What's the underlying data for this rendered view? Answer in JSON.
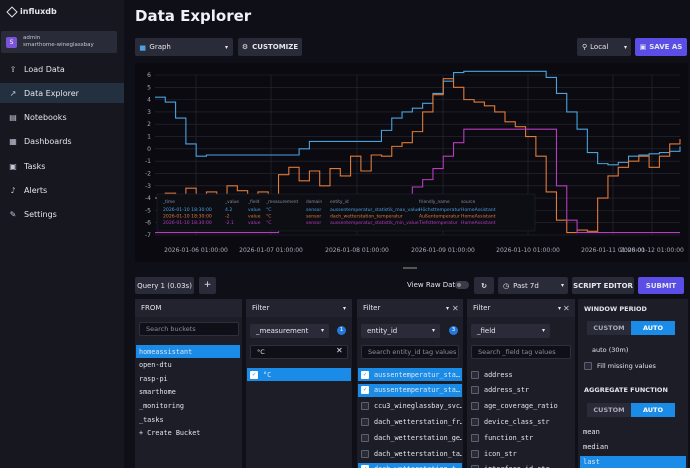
{
  "app": {
    "logo": "influxdb",
    "org_initial": "S",
    "user": "admin",
    "org": "smarthome-wineglassbay"
  },
  "nav": [
    {
      "label": "Load Data",
      "icon": "upload-icon"
    },
    {
      "label": "Data Explorer",
      "icon": "graph-icon",
      "active": true
    },
    {
      "label": "Notebooks",
      "icon": "notebook-icon"
    },
    {
      "label": "Dashboards",
      "icon": "dashboard-icon"
    },
    {
      "label": "Tasks",
      "icon": "calendar-icon"
    },
    {
      "label": "Alerts",
      "icon": "bell-icon"
    },
    {
      "label": "Settings",
      "icon": "wrench-icon"
    }
  ],
  "page": {
    "title": "Data Explorer"
  },
  "toolbar": {
    "graph": "Graph",
    "customize": "CUSTOMIZE",
    "timezone": "Local",
    "save": "SAVE AS"
  },
  "chart_data": {
    "type": "line",
    "ylim": [
      -7,
      6
    ],
    "yticks": [
      6,
      5,
      4,
      3,
      2,
      1,
      0,
      -1,
      -2,
      -3,
      -4,
      -5,
      -6,
      -7
    ],
    "x_labels": [
      "2026-01-06 01:00:00",
      "2026-01-07 01:00:00",
      "2026-01-08 01:00:00",
      "2026-01-09 01:00:00",
      "2026-01-10 01:00:00",
      "2026-01-11 01:00:00",
      "2026-01-12 01:00:00"
    ],
    "series": [
      {
        "color": "#4aa3df",
        "values": [
          4.2,
          3.8,
          2.5,
          0.4,
          -0.6,
          -0.5,
          -0.5,
          -0.5,
          -0.5,
          -0.5,
          -0.5,
          -0.5,
          -0.5,
          -0.5,
          0.0,
          0.6,
          0.6,
          0.6,
          0.6,
          0.6,
          0.6,
          0.6,
          1.5,
          2.5,
          3.0,
          3.3,
          3.7,
          4.5,
          5.5,
          6.2,
          6.3,
          6.3,
          6.3,
          6.3,
          6.3,
          6.3,
          6.3,
          6.3,
          5.8,
          4.5,
          3.0,
          1.6,
          -0.3,
          -1.2,
          -1.3,
          -1.1,
          -0.6,
          -0.5,
          -0.4,
          -0.3,
          -0.2,
          0.2
        ]
      },
      {
        "color": "#e07b39",
        "values": [
          -4.0,
          -3.6,
          -3.9,
          -3.2,
          -4.8,
          -3.5,
          -4.2,
          -3.0,
          -3.4,
          -5.2,
          -3.5,
          -4.0,
          -2.1,
          -1.5,
          -2.6,
          -1.8,
          -3.0,
          -1.6,
          -2.2,
          -0.6,
          -1.8,
          -0.5,
          -0.6,
          0.2,
          0.5,
          1.4,
          3.0,
          4.4,
          5.7,
          5.0,
          4.0,
          3.8,
          3.5,
          3.0,
          2.2,
          1.8,
          1.0,
          -0.6,
          -3.5,
          -5.8,
          -6.8,
          -6.6,
          -6.7,
          -4.0,
          -2.2,
          -1.5,
          -1.0,
          -0.6,
          -1.5,
          -0.6,
          0.4,
          0.8
        ]
      },
      {
        "color": "#b83cc0",
        "values": [
          -6.8,
          -6.8,
          -6.8,
          -6.8,
          -6.8,
          -6.8,
          -6.8,
          -6.8,
          -6.8,
          -6.8,
          -6.8,
          -6.8,
          -5.0,
          -5.0,
          -5.0,
          -5.0,
          -4.6,
          -4.6,
          -4.6,
          -4.6,
          -4.6,
          -4.6,
          -4.6,
          -3.9,
          -3.9,
          -3.1,
          -2.5,
          -1.6,
          -0.6,
          0.5,
          1.6,
          1.6,
          1.6,
          1.6,
          1.6,
          1.6,
          1.6,
          1.6,
          1.6,
          -3.0,
          -5.8,
          -6.8,
          -6.8,
          -6.8,
          -6.8,
          -6.8,
          -6.8,
          -6.8,
          -6.8,
          -6.8,
          -6.8,
          -6.8
        ]
      }
    ],
    "tooltip": {
      "headers": [
        "_time",
        "_value",
        "_field",
        "_measurement",
        "domain",
        "entity_id",
        "friendly_name",
        "source"
      ],
      "rows": [
        {
          "color": "#4aa3df",
          "cells": [
            "2026-01-10 18:30:00",
            "4.2",
            "value",
            "°C",
            "sensor",
            "aussentemperatur_statistik_max_value",
            "Höchsttemperatur",
            "HomeAssistant"
          ]
        },
        {
          "color": "#e07b39",
          "cells": [
            "2026-01-10 18:30:00",
            "-2",
            "value",
            "°C",
            "sensor",
            "dach_wetterstation_temperatur",
            "Außentemperatur",
            "HomeAssistant"
          ]
        },
        {
          "color": "#b83cc0",
          "cells": [
            "2026-01-10 18:30:00",
            "-2.1",
            "value",
            "°C",
            "sensor",
            "aussentemperatur_statistik_min_value",
            "Tiefsttemperatur",
            "HomeAssistant"
          ]
        }
      ]
    }
  },
  "query": {
    "tab": "Query 1 (0.03s)",
    "add": "+",
    "raw": "View Raw Data",
    "range": "Past 7d",
    "script_editor": "SCRIPT EDITOR",
    "submit": "SUBMIT"
  },
  "from": {
    "title": "FROM",
    "search_placeholder": "Search buckets",
    "buckets": [
      "homeassistant",
      "open-dtu",
      "rasp-pi",
      "smarthome",
      "_monitoring",
      "_tasks",
      "+ Create Bucket"
    ]
  },
  "filter1": {
    "title": "Filter",
    "key": "_measurement",
    "count": "1",
    "search_value": "°C",
    "values": [
      {
        "label": "°C",
        "checked": true
      }
    ]
  },
  "filter2": {
    "title": "Filter",
    "key": "entity_id",
    "count": "3",
    "search_placeholder": "Search entity_id tag values",
    "values": [
      {
        "label": "aussentemperatur_sta…",
        "checked": true
      },
      {
        "label": "aussentemperatur_sta…",
        "checked": true
      },
      {
        "label": "ccu3_wineglassbay_svc…",
        "checked": false
      },
      {
        "label": "dach_wetterstation_fr…",
        "checked": false
      },
      {
        "label": "dach_wetterstation_ge…",
        "checked": false
      },
      {
        "label": "dach_wetterstation_ta…",
        "checked": false
      },
      {
        "label": "dach_wetterstation_t…",
        "checked": true
      }
    ]
  },
  "filter3": {
    "title": "Filter",
    "key": "_field",
    "search_placeholder": "Search _field tag values",
    "values": [
      "address",
      "address_str",
      "age_coverage_ratio",
      "device_class_str",
      "function_str",
      "icon_str",
      "interface_id_str"
    ]
  },
  "window": {
    "title": "WINDOW PERIOD",
    "custom": "CUSTOM",
    "auto": "AUTO",
    "period": "auto (30m)",
    "fill": "Fill missing values"
  },
  "aggregate": {
    "title": "AGGREGATE FUNCTION",
    "custom": "CUSTOM",
    "auto": "AUTO",
    "functions": [
      "mean",
      "median",
      "last"
    ],
    "selected": "last"
  }
}
